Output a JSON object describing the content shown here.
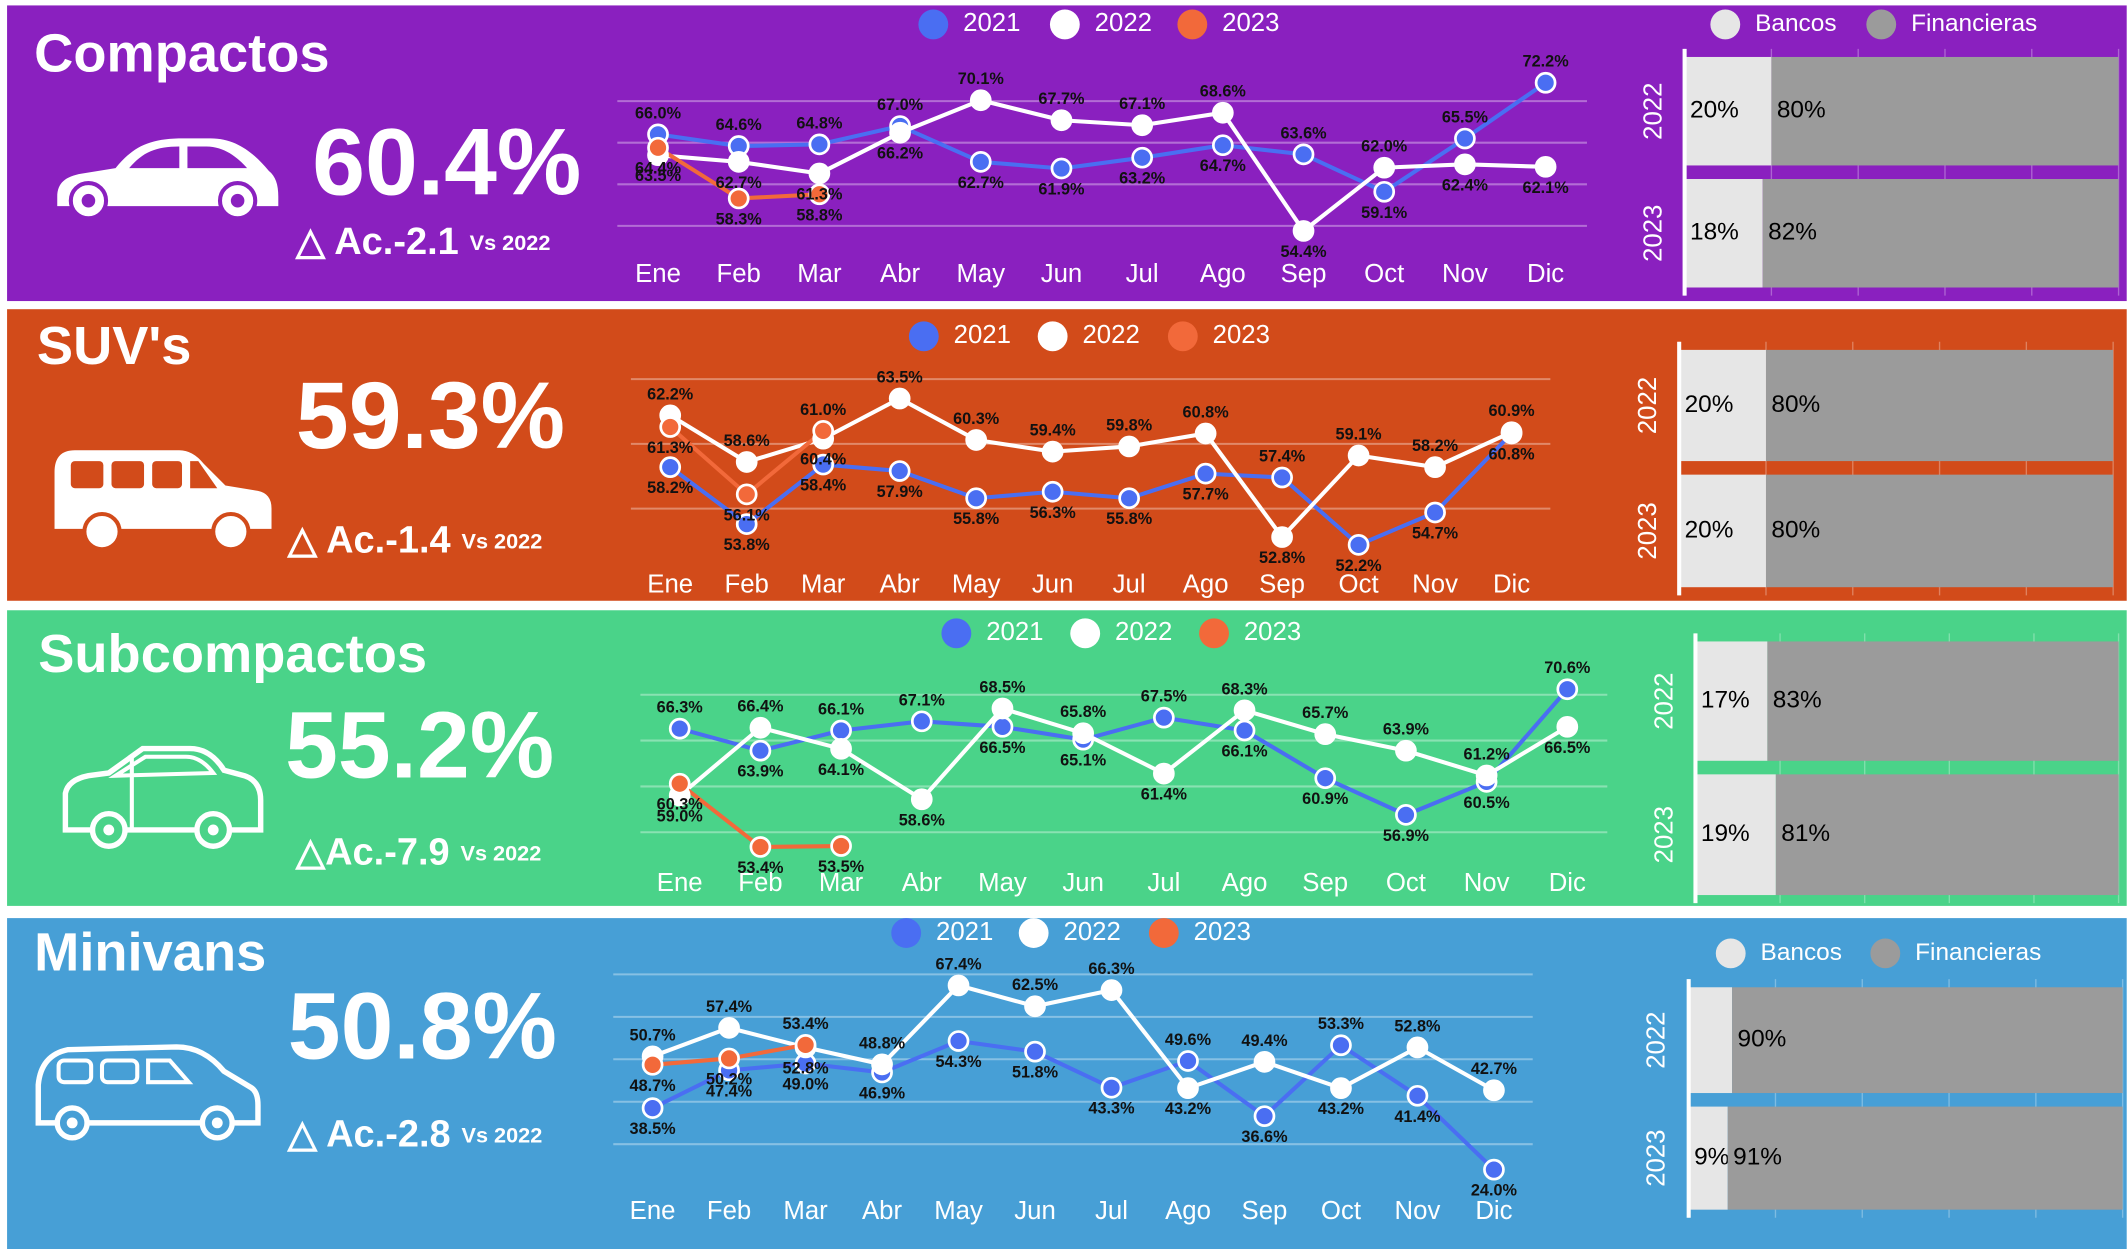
{
  "panels": [
    {
      "title": "Compactos",
      "kpi": "60.4%",
      "delta": "△ Ac.-2.1",
      "delta_note": "Vs 2022",
      "background": "#8a20bf",
      "line_chart": {
        "type": "line",
        "categories": [
          "Ene",
          "Feb",
          "Mar",
          "Abr",
          "May",
          "Jun",
          "Jul",
          "Ago",
          "Sep",
          "Oct",
          "Nov",
          "Dic"
        ],
        "series": [
          {
            "name": "2021",
            "color": "#4a6ef2",
            "values": [
              66.0,
              64.6,
              64.8,
              67.0,
              62.7,
              61.9,
              63.2,
              64.7,
              63.6,
              59.1,
              65.5,
              72.2
            ],
            "value_labels": [
              "66.0%",
              "64.6%",
              "64.8%",
              "67.0%",
              "62.7%",
              "61.9%",
              "63.2%",
              "64.7%",
              "63.6%",
              "59.1%",
              "65.5%",
              "72.2%"
            ]
          },
          {
            "name": "2022",
            "color": "#ffffff",
            "values": [
              63.5,
              62.7,
              61.3,
              66.2,
              70.1,
              67.7,
              67.1,
              68.6,
              54.4,
              62.0,
              62.4,
              62.1
            ],
            "value_labels": [
              "63.5%",
              "62.7%",
              "61.3%",
              "66.2%",
              "70.1%",
              "67.7%",
              "67.1%",
              "68.6%",
              "54.4%",
              "62.0%",
              "62.4%",
              "62.1%"
            ]
          },
          {
            "name": "2023",
            "color": "#f2693a",
            "values": [
              64.4,
              58.3,
              58.8,
              null,
              null,
              null,
              null,
              null,
              null,
              null,
              null,
              null
            ],
            "value_labels": [
              "64.4%",
              "58.3%",
              "58.8%",
              null,
              null,
              null,
              null,
              null,
              null,
              null,
              null,
              null
            ]
          }
        ],
        "ylim": [
          52,
          74
        ],
        "yticks": [
          55,
          60,
          65,
          70
        ],
        "grid": true
      },
      "bar_chart": {
        "type": "bar",
        "stacked": true,
        "orientation": "horizontal",
        "categories": [
          "2022",
          "2023"
        ],
        "series": [
          {
            "name": "Bancos",
            "color": "#e6e6e6",
            "values": [
              20,
              18
            ],
            "value_labels": [
              "20%",
              "18%"
            ]
          },
          {
            "name": "Financieras",
            "color": "#9b9b9b",
            "values": [
              80,
              82
            ],
            "value_labels": [
              "80%",
              "82%"
            ]
          }
        ],
        "xlim": [
          0,
          100
        ],
        "xticks": [
          0,
          20,
          40,
          60,
          80,
          100
        ],
        "grid": true,
        "legend": true
      }
    },
    {
      "title": "SUV's",
      "kpi": "59.3%",
      "delta": "△ Ac.-1.4",
      "delta_note": "Vs 2022",
      "background": "#d24b1a",
      "line_chart": {
        "type": "line",
        "categories": [
          "Ene",
          "Feb",
          "Mar",
          "Abr",
          "May",
          "Jun",
          "Jul",
          "Ago",
          "Sep",
          "Oct",
          "Nov",
          "Dic"
        ],
        "series": [
          {
            "name": "2021",
            "color": "#4a6ef2",
            "values": [
              58.2,
              53.8,
              58.4,
              57.9,
              55.8,
              56.3,
              55.8,
              57.7,
              57.4,
              52.2,
              54.7,
              60.8
            ],
            "value_labels": [
              "58.2%",
              "53.8%",
              "58.4%",
              "57.9%",
              "55.8%",
              "56.3%",
              "55.8%",
              "57.7%",
              "57.4%",
              "52.2%",
              "54.7%",
              "60.8%"
            ]
          },
          {
            "name": "2022",
            "color": "#ffffff",
            "values": [
              62.2,
              58.6,
              60.4,
              63.5,
              60.3,
              59.4,
              59.8,
              60.8,
              52.8,
              59.1,
              58.2,
              60.9
            ],
            "value_labels": [
              "62.2%",
              "58.6%",
              "60.4%",
              "63.5%",
              "60.3%",
              "59.4%",
              "59.8%",
              "60.8%",
              "52.8%",
              "59.1%",
              "58.2%",
              "60.9%"
            ]
          },
          {
            "name": "2023",
            "color": "#f2693a",
            "values": [
              61.3,
              56.1,
              61.0,
              null,
              null,
              null,
              null,
              null,
              null,
              null,
              null,
              null
            ],
            "value_labels": [
              "61.3%",
              "56.1%",
              "61.0%",
              null,
              null,
              null,
              null,
              null,
              null,
              null,
              null,
              null
            ]
          }
        ],
        "ylim": [
          50.5,
          66
        ],
        "yticks": [
          55,
          60,
          65
        ],
        "grid": true
      },
      "bar_chart": {
        "type": "bar",
        "stacked": true,
        "orientation": "horizontal",
        "categories": [
          "2022",
          "2023"
        ],
        "series": [
          {
            "name": "Bancos",
            "color": "#e6e6e6",
            "values": [
              20,
              20
            ],
            "value_labels": [
              "20%",
              "20%"
            ]
          },
          {
            "name": "Financieras",
            "color": "#9b9b9b",
            "values": [
              80,
              80
            ],
            "value_labels": [
              "80%",
              "80%"
            ]
          }
        ],
        "xlim": [
          0,
          100
        ],
        "xticks": [
          0,
          20,
          40,
          60,
          80,
          100
        ],
        "grid": true,
        "legend": false
      }
    },
    {
      "title": "Subcompactos",
      "kpi": "55.2%",
      "delta": "△Ac.-7.9",
      "delta_note": "Vs 2022",
      "background": "#4ad389",
      "line_chart": {
        "type": "line",
        "categories": [
          "Ene",
          "Feb",
          "Mar",
          "Abr",
          "May",
          "Jun",
          "Jul",
          "Ago",
          "Sep",
          "Oct",
          "Nov",
          "Dic"
        ],
        "series": [
          {
            "name": "2021",
            "color": "#4a6ef2",
            "values": [
              66.3,
              63.9,
              66.1,
              67.1,
              66.5,
              65.1,
              67.5,
              66.1,
              60.9,
              56.9,
              60.5,
              70.6
            ],
            "value_labels": [
              "66.3%",
              "63.9%",
              "66.1%",
              "67.1%",
              "66.5%",
              "65.1%",
              "67.5%",
              "66.1%",
              "60.9%",
              "56.9%",
              "60.5%",
              "70.6%"
            ]
          },
          {
            "name": "2022",
            "color": "#ffffff",
            "values": [
              59.0,
              66.4,
              64.1,
              58.6,
              68.5,
              65.8,
              61.4,
              68.3,
              65.7,
              63.9,
              61.2,
              66.5
            ],
            "value_labels": [
              "59.0%",
              "66.4%",
              "64.1%",
              "58.6%",
              "68.5%",
              "65.8%",
              "61.4%",
              "68.3%",
              "65.7%",
              "63.9%",
              "61.2%",
              "66.5%"
            ]
          },
          {
            "name": "2023",
            "color": "#f2693a",
            "values": [
              60.3,
              53.4,
              53.5,
              null,
              null,
              null,
              null,
              null,
              null,
              null,
              null,
              null
            ],
            "value_labels": [
              "60.3%",
              "53.4%",
              "53.5%",
              null,
              null,
              null,
              null,
              null,
              null,
              null,
              null,
              null
            ]
          }
        ],
        "ylim": [
          52,
          73
        ],
        "yticks": [
          55,
          60,
          65,
          70
        ],
        "grid": true
      },
      "bar_chart": {
        "type": "bar",
        "stacked": true,
        "orientation": "horizontal",
        "categories": [
          "2022",
          "2023"
        ],
        "series": [
          {
            "name": "Bancos",
            "color": "#e6e6e6",
            "values": [
              17,
              19
            ],
            "value_labels": [
              "17%",
              "19%"
            ]
          },
          {
            "name": "Financieras",
            "color": "#9b9b9b",
            "values": [
              83,
              81
            ],
            "value_labels": [
              "83%",
              "81%"
            ]
          }
        ],
        "xlim": [
          0,
          100
        ],
        "xticks": [
          0,
          20,
          40,
          60,
          80,
          100
        ],
        "grid": true,
        "legend": false
      }
    },
    {
      "title": "Minivans",
      "kpi": "50.8%",
      "delta": "△ Ac.-2.8",
      "delta_note": "Vs 2022",
      "background": "#479fd6",
      "line_chart": {
        "type": "line",
        "categories": [
          "Ene",
          "Feb",
          "Mar",
          "Abr",
          "May",
          "Jun",
          "Jul",
          "Ago",
          "Sep",
          "Oct",
          "Nov",
          "Dic"
        ],
        "series": [
          {
            "name": "2021",
            "color": "#4a6ef2",
            "values": [
              38.5,
              47.4,
              49.0,
              46.9,
              54.3,
              51.8,
              43.3,
              49.6,
              36.6,
              53.3,
              41.4,
              24.0
            ],
            "value_labels": [
              "38.5%",
              "47.4%",
              "49.0%",
              "46.9%",
              "54.3%",
              "51.8%",
              "43.3%",
              "49.6%",
              "36.6%",
              "53.3%",
              "41.4%",
              "24.0%"
            ]
          },
          {
            "name": "2022",
            "color": "#ffffff",
            "values": [
              50.7,
              57.4,
              52.8,
              48.8,
              67.4,
              62.5,
              66.3,
              43.2,
              49.4,
              43.2,
              52.8,
              42.7
            ],
            "value_labels": [
              "50.7%",
              "57.4%",
              "52.8%",
              "48.8%",
              "67.4%",
              "62.5%",
              "66.3%",
              "43.2%",
              "49.4%",
              "43.2%",
              "52.8%",
              "42.7%"
            ]
          },
          {
            "name": "2023",
            "color": "#f2693a",
            "values": [
              48.7,
              50.2,
              53.4,
              null,
              null,
              null,
              null,
              null,
              null,
              null,
              null,
              null
            ],
            "value_labels": [
              "48.7%",
              "50.2%",
              "53.4%",
              null,
              null,
              null,
              null,
              null,
              null,
              null,
              null,
              null
            ]
          }
        ],
        "ylim": [
          20,
          74
        ],
        "yticks": [
          30,
          40,
          50,
          60,
          70
        ],
        "grid": true
      },
      "bar_chart": {
        "type": "bar",
        "stacked": true,
        "orientation": "horizontal",
        "categories": [
          "2022",
          "2023"
        ],
        "series": [
          {
            "name": "Bancos",
            "color": "#e6e6e6",
            "values": [
              10,
              9
            ],
            "value_labels": [
              null,
              "9%"
            ]
          },
          {
            "name": "Financieras",
            "color": "#9b9b9b",
            "values": [
              90,
              91
            ],
            "value_labels": [
              "90%",
              "91%"
            ]
          }
        ],
        "xlim": [
          0,
          100
        ],
        "xticks": [
          0,
          20,
          40,
          60,
          80,
          100
        ],
        "grid": true,
        "legend": true
      }
    }
  ]
}
